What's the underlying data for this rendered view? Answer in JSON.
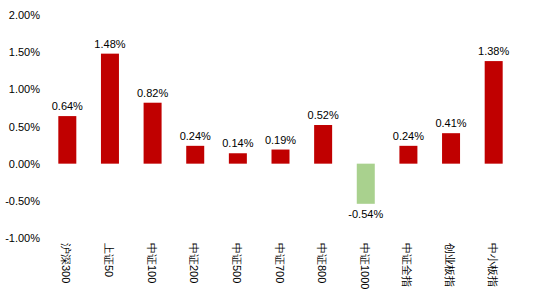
{
  "chart_data": {
    "type": "bar",
    "categories": [
      "沪深300",
      "上证50",
      "中证100",
      "中证200",
      "中证500",
      "中证700",
      "中证800",
      "中证1000",
      "中证全指",
      "创业板指",
      "中小板指"
    ],
    "values": [
      0.64,
      1.48,
      0.82,
      0.24,
      0.14,
      0.19,
      0.52,
      -0.54,
      0.24,
      0.41,
      1.38
    ],
    "value_labels": [
      "0.64%",
      "1.48%",
      "0.82%",
      "0.24%",
      "0.14%",
      "0.19%",
      "0.52%",
      "-0.54%",
      "0.24%",
      "0.41%",
      "1.38%"
    ],
    "colors": [
      "#c00000",
      "#c00000",
      "#c00000",
      "#c00000",
      "#c00000",
      "#c00000",
      "#c00000",
      "#a9d18e",
      "#c00000",
      "#c00000",
      "#c00000"
    ],
    "ylim": [
      -1,
      2
    ],
    "yticks": [
      {
        "value": -1,
        "label": "-1.00%"
      },
      {
        "value": -0.5,
        "label": "-0.50%"
      },
      {
        "value": 0,
        "label": "0.00%"
      },
      {
        "value": 0.5,
        "label": "0.50%"
      },
      {
        "value": 1,
        "label": "1.00%"
      },
      {
        "value": 1.5,
        "label": "1.50%"
      },
      {
        "value": 2,
        "label": "2.00%"
      }
    ],
    "grid": false,
    "data_labels": true
  }
}
